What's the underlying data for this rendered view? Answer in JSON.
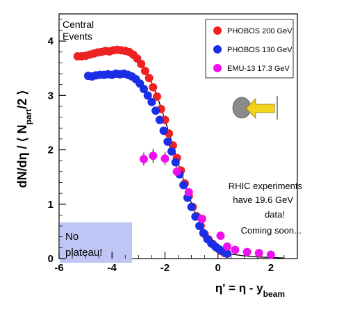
{
  "chart_data": {
    "type": "scatter",
    "ylabel": "dN/dη / ⟨ N_part/2 ⟩",
    "xlabel": "η' = η - y_beam",
    "xlim": [
      -6,
      3
    ],
    "ylim": [
      0,
      4.5
    ],
    "x_ticks": [
      -6,
      -4,
      -2,
      0,
      2
    ],
    "y_ticks": [
      0,
      1,
      2,
      3,
      4
    ],
    "corner_label": [
      "Central",
      "Events"
    ],
    "legend_placement": "top-right",
    "series": [
      {
        "name": "PHOBOS 200 GeV",
        "color": "#ee2222",
        "points": [
          [
            -5.3,
            3.72
          ],
          [
            -5.15,
            3.72
          ],
          [
            -5.0,
            3.73
          ],
          [
            -4.85,
            3.75
          ],
          [
            -4.7,
            3.77
          ],
          [
            -4.55,
            3.79
          ],
          [
            -4.4,
            3.8
          ],
          [
            -4.25,
            3.82
          ],
          [
            -4.1,
            3.81
          ],
          [
            -3.95,
            3.83
          ],
          [
            -3.8,
            3.84
          ],
          [
            -3.65,
            3.83
          ],
          [
            -3.5,
            3.82
          ],
          [
            -3.35,
            3.8
          ],
          [
            -3.2,
            3.75
          ],
          [
            -3.05,
            3.68
          ],
          [
            -2.9,
            3.58
          ],
          [
            -2.75,
            3.45
          ],
          [
            -2.6,
            3.32
          ],
          [
            -2.45,
            3.15
          ],
          [
            -2.3,
            2.98
          ],
          [
            -2.15,
            2.75
          ],
          [
            -2.0,
            2.55
          ],
          [
            -1.85,
            2.3
          ],
          [
            -1.7,
            2.08
          ],
          [
            -1.55,
            1.85
          ],
          [
            -1.4,
            1.62
          ],
          [
            -1.25,
            1.38
          ],
          [
            -1.1,
            1.15
          ],
          [
            -0.95,
            0.95
          ],
          [
            -0.8,
            0.78
          ],
          [
            -0.65,
            0.6
          ],
          [
            -0.5,
            0.45
          ],
          [
            -0.35,
            0.35
          ],
          [
            -0.2,
            0.27
          ],
          [
            -0.05,
            0.2
          ],
          [
            0.1,
            0.14
          ],
          [
            0.25,
            0.1
          ]
        ]
      },
      {
        "name": "PHOBOS 130 GeV",
        "color": "#1a2ee6",
        "points": [
          [
            -4.9,
            3.36
          ],
          [
            -4.75,
            3.35
          ],
          [
            -4.6,
            3.37
          ],
          [
            -4.45,
            3.38
          ],
          [
            -4.3,
            3.38
          ],
          [
            -4.15,
            3.39
          ],
          [
            -4.0,
            3.38
          ],
          [
            -3.85,
            3.4
          ],
          [
            -3.7,
            3.39
          ],
          [
            -3.55,
            3.4
          ],
          [
            -3.4,
            3.38
          ],
          [
            -3.25,
            3.35
          ],
          [
            -3.1,
            3.3
          ],
          [
            -2.95,
            3.22
          ],
          [
            -2.8,
            3.12
          ],
          [
            -2.65,
            3.0
          ],
          [
            -2.5,
            2.88
          ],
          [
            -2.35,
            2.72
          ],
          [
            -2.2,
            2.55
          ],
          [
            -2.05,
            2.35
          ],
          [
            -1.9,
            2.15
          ],
          [
            -1.75,
            1.97
          ],
          [
            -1.6,
            1.77
          ],
          [
            -1.45,
            1.55
          ],
          [
            -1.3,
            1.35
          ],
          [
            -1.15,
            1.12
          ],
          [
            -1.0,
            0.95
          ],
          [
            -0.85,
            0.77
          ],
          [
            -0.7,
            0.6
          ],
          [
            -0.55,
            0.47
          ],
          [
            -0.4,
            0.36
          ],
          [
            -0.25,
            0.28
          ],
          [
            -0.1,
            0.22
          ],
          [
            0.05,
            0.17
          ],
          [
            0.2,
            0.13
          ],
          [
            0.35,
            0.09
          ]
        ]
      },
      {
        "name": "EMU-13 17.3 GeV",
        "color": "#ee11ee",
        "points": [
          [
            -2.8,
            1.83
          ],
          [
            -2.45,
            1.89
          ],
          [
            -2.0,
            1.84
          ],
          [
            -1.55,
            1.6
          ],
          [
            -1.1,
            1.22
          ],
          [
            -0.6,
            0.73
          ],
          [
            0.1,
            0.42
          ],
          [
            0.35,
            0.22
          ],
          [
            0.65,
            0.16
          ],
          [
            1.1,
            0.12
          ],
          [
            1.55,
            0.1
          ],
          [
            2.0,
            0.07
          ]
        ],
        "errors": [
          0.12,
          0.13,
          0.12,
          0.1,
          0.08,
          0.06,
          0.04,
          0.03,
          0.02,
          0.02,
          0.02,
          0.02
        ]
      }
    ],
    "fit_curve": [
      [
        -5.3,
        3.7
      ],
      [
        -5.0,
        3.73
      ],
      [
        -4.7,
        3.77
      ],
      [
        -4.4,
        3.8
      ],
      [
        -4.1,
        3.82
      ],
      [
        -3.8,
        3.83
      ],
      [
        -3.5,
        3.81
      ],
      [
        -3.2,
        3.75
      ],
      [
        -2.9,
        3.6
      ],
      [
        -2.6,
        3.35
      ],
      [
        -2.3,
        3.0
      ],
      [
        -2.0,
        2.55
      ],
      [
        -1.7,
        2.08
      ],
      [
        -1.4,
        1.6
      ],
      [
        -1.1,
        1.15
      ],
      [
        -0.8,
        0.77
      ],
      [
        -0.5,
        0.47
      ],
      [
        -0.2,
        0.27
      ],
      [
        0.1,
        0.15
      ],
      [
        0.5,
        0.08
      ],
      [
        1.0,
        0.05
      ],
      [
        1.5,
        0.03
      ],
      [
        2.0,
        0.02
      ],
      [
        2.5,
        0.01
      ]
    ]
  },
  "annotations": {
    "rhic_note": [
      "RHIC experiments",
      "have 19.6 GeV",
      "data!",
      "Coming soon..."
    ],
    "no_plateau": [
      "No",
      "plateau!"
    ]
  }
}
